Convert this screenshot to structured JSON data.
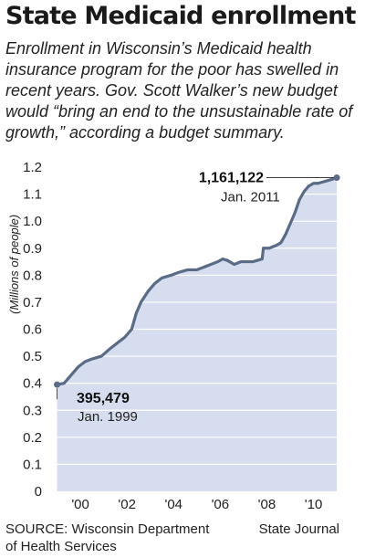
{
  "header": {
    "title": "State Medicaid enrollment",
    "subtitle": "Enrollment in Wisconsin’s Medicaid health insurance program for the poor has swelled in recent years. Gov. Scott Walker’s new budget would “bring an end to the unsustainable rate of growth,” according a budget summary."
  },
  "footer": {
    "source": "SOURCE: Wisconsin Department of Health Services",
    "credit": "State Journal"
  },
  "colors": {
    "area_fill": "#d5ddef",
    "line": "#5a6b86",
    "grid": "#ffffff",
    "text": "#222222"
  },
  "chart_data": {
    "type": "area",
    "title": "",
    "xlabel": "",
    "ylabel": "(Millions of people)",
    "xlim": [
      1998.9,
      2011.35
    ],
    "ylim": [
      0,
      1.2
    ],
    "x_ticks": [
      2000,
      2002,
      2004,
      2006,
      2008,
      2010
    ],
    "x_tick_labels": [
      "'00",
      "'02",
      "'04",
      "'06",
      "'08",
      "'10"
    ],
    "y_ticks": [
      0,
      0.1,
      0.2,
      0.3,
      0.4,
      0.5,
      0.6,
      0.7,
      0.8,
      0.9,
      1.0,
      1.1,
      1.2
    ],
    "y_tick_labels": [
      "0",
      "0.1",
      "0.2",
      "0.3",
      "0.4",
      "0.5",
      "0.6",
      "0.7",
      "0.8",
      "0.9",
      "1.0",
      "1.1",
      "1.2"
    ],
    "grid": true,
    "series": [
      {
        "x": [
          1999.0,
          1999.3,
          1999.6,
          1999.9,
          2000.2,
          2000.5,
          2000.9,
          2001.3,
          2001.6,
          2001.9,
          2002.2,
          2002.4,
          2002.6,
          2002.9,
          2003.2,
          2003.5,
          2003.9,
          2004.2,
          2004.6,
          2005.0,
          2005.3,
          2005.6,
          2005.9,
          2006.1,
          2006.3,
          2006.6,
          2006.9,
          2007.2,
          2007.4,
          2007.6,
          2007.8,
          2007.85,
          2008.1,
          2008.4,
          2008.6,
          2008.8,
          2009.0,
          2009.2,
          2009.4,
          2009.6,
          2009.8,
          2010.0,
          2010.2,
          2010.4,
          2010.6,
          2010.8,
          2011.0
        ],
        "y": [
          0.395,
          0.4,
          0.43,
          0.46,
          0.48,
          0.49,
          0.5,
          0.53,
          0.55,
          0.57,
          0.6,
          0.66,
          0.7,
          0.74,
          0.77,
          0.79,
          0.8,
          0.81,
          0.82,
          0.82,
          0.83,
          0.84,
          0.85,
          0.86,
          0.855,
          0.84,
          0.85,
          0.85,
          0.85,
          0.855,
          0.86,
          0.9,
          0.9,
          0.91,
          0.92,
          0.95,
          0.99,
          1.03,
          1.08,
          1.11,
          1.13,
          1.14,
          1.14,
          1.145,
          1.15,
          1.155,
          1.161
        ]
      }
    ],
    "annotations": [
      {
        "value": "1,161,122",
        "date": "Jan. 2011",
        "x": 2011.0,
        "y": 1.161
      },
      {
        "value": "395,479",
        "date": "Jan. 1999",
        "x": 1999.0,
        "y": 0.395
      }
    ]
  }
}
